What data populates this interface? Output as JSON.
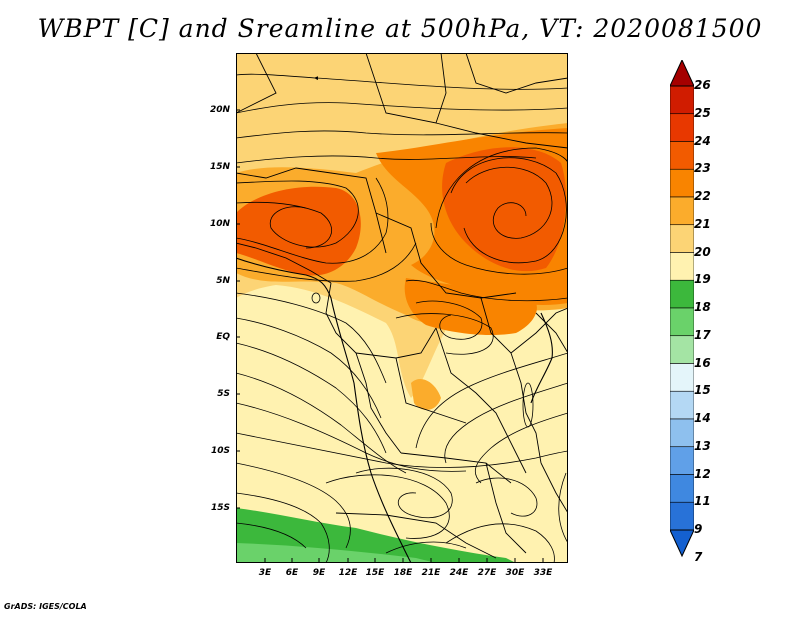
{
  "title": "WBPT [C] and Sreamline at 500hPa, VT: 2020081500",
  "footer": "GrADS: IGES/COLA",
  "map": {
    "lat_labels": [
      "20N",
      "15N",
      "10N",
      "5N",
      "EQ",
      "5S",
      "10S",
      "15S"
    ],
    "lon_labels": [
      "3E",
      "6E",
      "9E",
      "12E",
      "15E",
      "18E",
      "21E",
      "24E",
      "27E",
      "30E",
      "33E"
    ],
    "fields": [
      "wet-bulb potential temperature",
      "streamlines",
      "country borders",
      "coastlines"
    ]
  },
  "colorbar": {
    "levels": [
      "26",
      "25",
      "24",
      "23",
      "22",
      "21",
      "20",
      "19",
      "18",
      "17",
      "16",
      "15",
      "14",
      "13",
      "12",
      "11",
      "9",
      "7"
    ],
    "colors": [
      "#a50000",
      "#d01c00",
      "#e83800",
      "#f25b00",
      "#f98400",
      "#fbac2c",
      "#fcd475",
      "#fff2b0",
      "#3cb83c",
      "#6ad26a",
      "#a4e4a4",
      "#e4f5fa",
      "#b4d8f4",
      "#8ec0ee",
      "#60a0e8",
      "#3f88e0",
      "#2872d8",
      "#1460d0"
    ]
  }
}
